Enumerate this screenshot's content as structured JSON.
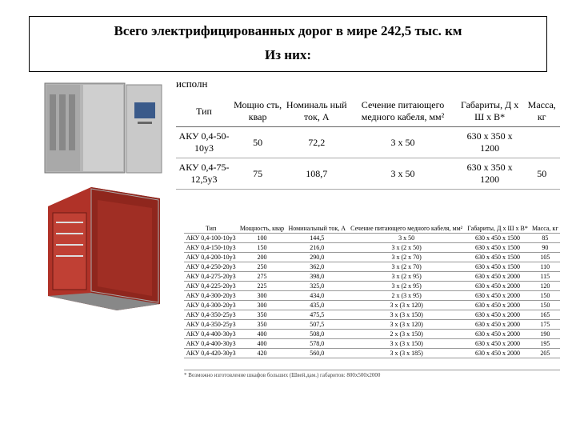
{
  "header": {
    "line1": "Всего электрифицированных дорог в мире 242,5 тыс. км",
    "line2": "Из них:"
  },
  "partial_word": "исполн",
  "cabinet_gray": {
    "body": "#b8b8b8",
    "panel": "#c7c7c7",
    "dark": "#6e6e6e",
    "screen": "#3a5a8a"
  },
  "cabinet_red": {
    "body": "#b03228",
    "frame": "#a8a8a8",
    "dark": "#555"
  },
  "table1": {
    "columns": [
      "Тип",
      "Мощно\nсть,\nквар",
      "Номиналь\nный ток,\nА",
      "Сечение\nпитающего\nмедного кабеля,\nмм²",
      "Габариты, Д x\nШ x В*",
      "Масса, кг"
    ],
    "rows": [
      [
        "АКУ 0,4-50-\n10у3",
        "50",
        "72,2",
        "3 x 50",
        "630 x 350 x 1200",
        ""
      ],
      [
        "АКУ 0,4-75-\n12,5у3",
        "75",
        "108,7",
        "3 x 50",
        "630 x 350 x 1200",
        "50"
      ]
    ]
  },
  "table2": {
    "columns": [
      "Тип",
      "Мощность,\nквар",
      "Номинальный\nток, А",
      "Сечение питающего\nмедного кабеля, мм²",
      "Габариты, Д x Ш x В*",
      "Масса, кг"
    ],
    "rows": [
      [
        "АКУ 0,4-100-10у3",
        "100",
        "144,5",
        "3 x 50",
        "630 x 450 x 1500",
        "85"
      ],
      [
        "АКУ 0,4-150-10у3",
        "150",
        "216,0",
        "3 x (2 x 50)",
        "630 x 450 x 1500",
        "90"
      ],
      [
        "АКУ 0,4-200-10у3",
        "200",
        "290,0",
        "3 x (2 x 70)",
        "630 x 450 x 1500",
        "105"
      ],
      [
        "АКУ 0,4-250-20у3",
        "250",
        "362,0",
        "3 x (2 x 70)",
        "630 x 450 x 1500",
        "110"
      ],
      [
        "АКУ 0,4-275-20у3",
        "275",
        "398,0",
        "3 x (2 x 95)",
        "630 x 450 x 2000",
        "115"
      ],
      [
        "АКУ 0,4-225-20у3",
        "225",
        "325,0",
        "3 x (2 x 95)",
        "630 x 450 x 2000",
        "120"
      ],
      [
        "АКУ 0,4-300-20у3",
        "300",
        "434,0",
        "2 x (3 x 95)",
        "630 x 450 x 2000",
        "150"
      ],
      [
        "АКУ 0,4-300-20у3",
        "300",
        "435,0",
        "3 x (3 x 120)",
        "630 x 450 x 2000",
        "150"
      ],
      [
        "АКУ 0,4-350-25у3",
        "350",
        "475,5",
        "3 x (3 x 150)",
        "630 x 450 x 2000",
        "165"
      ],
      [
        "АКУ 0,4-350-25у3",
        "350",
        "507,5",
        "3 x (3 x 120)",
        "630 x 450 x 2000",
        "175"
      ],
      [
        "АКУ 0,4-400-30у3",
        "400",
        "508,0",
        "2 x (3 x 150)",
        "630 x 450 x 2000",
        "190"
      ],
      [
        "АКУ 0,4-400-30у3",
        "400",
        "578,0",
        "3 x (3 x 150)",
        "630 x 450 x 2000",
        "195"
      ],
      [
        "АКУ 0,4-420-30у3",
        "420",
        "560,0",
        "3 x (3 x 185)",
        "630 x 450 x 2000",
        "205"
      ]
    ]
  },
  "footnote": "* Возможно изготовление шкафов больших (Швей.дам.) габаритов: 800x500x2000"
}
